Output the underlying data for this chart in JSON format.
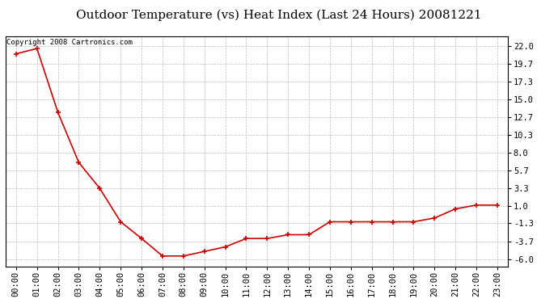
{
  "title": "Outdoor Temperature (vs) Heat Index (Last 24 Hours) 20081221",
  "copyright_text": "Copyright 2008 Cartronics.com",
  "x_labels": [
    "00:00",
    "01:00",
    "02:00",
    "03:00",
    "04:00",
    "05:00",
    "06:00",
    "07:00",
    "08:00",
    "09:00",
    "10:00",
    "11:00",
    "12:00",
    "13:00",
    "14:00",
    "15:00",
    "16:00",
    "17:00",
    "18:00",
    "19:00",
    "20:00",
    "21:00",
    "22:00",
    "23:00"
  ],
  "y_values": [
    21.0,
    21.7,
    13.3,
    6.7,
    3.3,
    -1.1,
    -3.3,
    -5.6,
    -5.6,
    -5.0,
    -4.4,
    -3.3,
    -3.3,
    -2.8,
    -2.8,
    -1.1,
    -1.1,
    -1.1,
    -1.1,
    -1.1,
    -0.6,
    0.6,
    1.1,
    1.1
  ],
  "y_ticks": [
    22.0,
    19.7,
    17.3,
    15.0,
    12.7,
    10.3,
    8.0,
    5.7,
    3.3,
    1.0,
    -1.3,
    -3.7,
    -6.0
  ],
  "ylim": [
    -7.0,
    23.3
  ],
  "line_color": "#cc0000",
  "marker": "+",
  "marker_size": 5,
  "marker_edge_width": 1.2,
  "line_width": 1.2,
  "background_color": "#ffffff",
  "plot_bg_color": "#ffffff",
  "grid_color": "#bbbbbb",
  "title_fontsize": 11,
  "tick_fontsize": 7.5,
  "copyright_fontsize": 6.5
}
